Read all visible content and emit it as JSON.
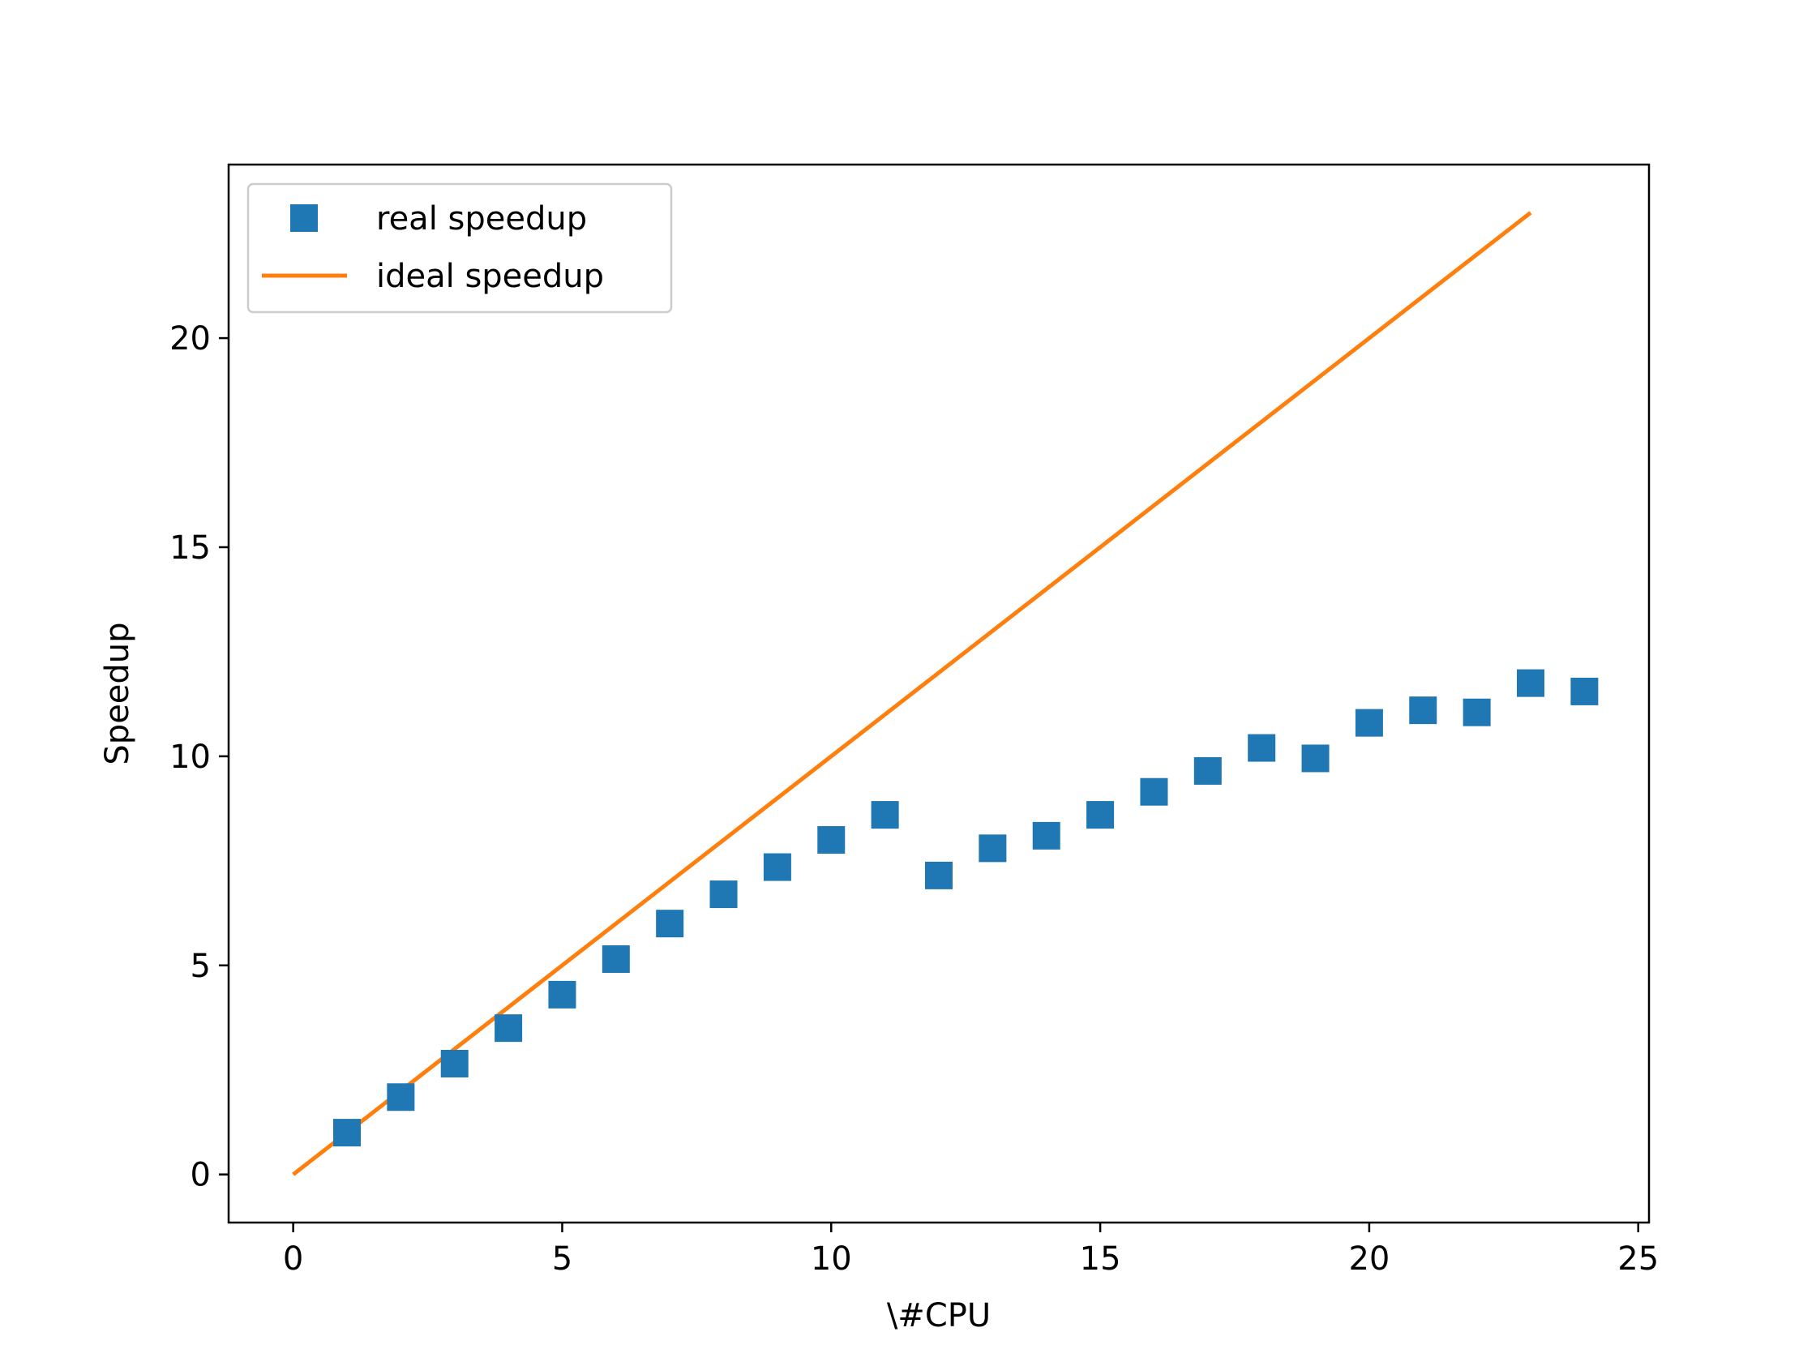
{
  "chart_data": {
    "type": "scatter",
    "title": "",
    "xlabel": "\\#CPU",
    "ylabel": "Speedup",
    "xlim": [
      -1.2,
      25.2
    ],
    "ylim": [
      -1.15,
      24.15
    ],
    "xticks": [
      0,
      5,
      10,
      15,
      20,
      25
    ],
    "yticks": [
      0,
      5,
      10,
      15,
      20
    ],
    "xtick_labels": [
      "0",
      "5",
      "10",
      "15",
      "20",
      "25"
    ],
    "ytick_labels": [
      "0",
      "5",
      "10",
      "15",
      "20"
    ],
    "grid": false,
    "legend_position": "upper-left",
    "series": [
      {
        "name": "real speedup",
        "style": "square-markers",
        "color": "#1f77b4",
        "x": [
          1,
          2,
          3,
          4,
          5,
          6,
          7,
          8,
          9,
          10,
          11,
          12,
          13,
          14,
          15,
          16,
          17,
          18,
          19,
          20,
          21,
          22,
          23,
          24
        ],
        "y": [
          1.0,
          1.85,
          2.65,
          3.5,
          4.3,
          5.15,
          6.0,
          6.7,
          7.35,
          8.0,
          8.6,
          7.15,
          7.8,
          8.1,
          8.6,
          9.15,
          9.65,
          10.2,
          9.95,
          10.8,
          11.1,
          11.05,
          11.75,
          11.55
        ]
      },
      {
        "name": "ideal speedup",
        "style": "line",
        "color": "#ff7f0e",
        "x": [
          0,
          23
        ],
        "y": [
          0,
          23
        ]
      }
    ]
  }
}
